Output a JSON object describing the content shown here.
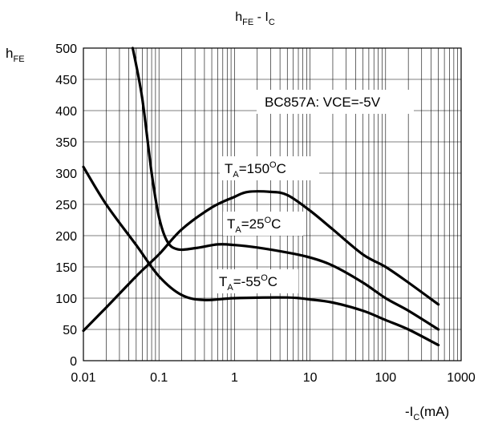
{
  "chart_data": {
    "type": "line",
    "title": {
      "main": "h",
      "main_sub": "FE",
      "sep": " - I",
      "sep_sub": "C"
    },
    "ylabel": {
      "main": "h",
      "sub": "FE"
    },
    "xlabel": {
      "pre": "-I",
      "sub": "C",
      "post": "(mA)"
    },
    "x_scale": "log",
    "xlim": [
      0.01,
      1000
    ],
    "ylim": [
      0,
      500
    ],
    "x_ticks": [
      0.01,
      0.1,
      1,
      10,
      100,
      1000
    ],
    "x_tick_labels": [
      "0.01",
      "0.1",
      "1",
      "10",
      "100",
      "1000"
    ],
    "y_ticks": [
      0,
      50,
      100,
      150,
      200,
      250,
      300,
      350,
      400,
      450,
      500
    ],
    "y_tick_labels": [
      "0",
      "50",
      "100",
      "150",
      "200",
      "250",
      "300",
      "350",
      "400",
      "450",
      "500"
    ],
    "grid": true,
    "annotation": "BC857A: VCE=-5V",
    "series": [
      {
        "name": "T_A=150°C",
        "label": {
          "pre": "T",
          "sub": "A",
          "mid": "=150",
          "sup": "O",
          "post": "C"
        },
        "points": [
          [
            0.01,
            48
          ],
          [
            0.02,
            85
          ],
          [
            0.05,
            135
          ],
          [
            0.1,
            170
          ],
          [
            0.2,
            210
          ],
          [
            0.5,
            245
          ],
          [
            1,
            262
          ],
          [
            1.5,
            270
          ],
          [
            3,
            270
          ],
          [
            5,
            265
          ],
          [
            10,
            240
          ],
          [
            20,
            210
          ],
          [
            50,
            170
          ],
          [
            100,
            150
          ],
          [
            200,
            125
          ],
          [
            500,
            90
          ]
        ]
      },
      {
        "name": "T_A=25°C",
        "label": {
          "pre": "T",
          "sub": "A",
          "mid": "=25",
          "sup": "O",
          "post": "C"
        },
        "points": [
          [
            0.045,
            500
          ],
          [
            0.06,
            420
          ],
          [
            0.08,
            300
          ],
          [
            0.1,
            230
          ],
          [
            0.13,
            190
          ],
          [
            0.18,
            178
          ],
          [
            0.3,
            180
          ],
          [
            0.6,
            186
          ],
          [
            1,
            185
          ],
          [
            2,
            181
          ],
          [
            5,
            173
          ],
          [
            10,
            165
          ],
          [
            20,
            152
          ],
          [
            50,
            125
          ],
          [
            100,
            100
          ],
          [
            200,
            80
          ],
          [
            500,
            50
          ]
        ]
      },
      {
        "name": "T_A=-55°C",
        "label": {
          "pre": "T",
          "sub": "A",
          "mid": "=-55",
          "sup": "O",
          "post": "C"
        },
        "points": [
          [
            0.01,
            310
          ],
          [
            0.02,
            250
          ],
          [
            0.05,
            185
          ],
          [
            0.1,
            135
          ],
          [
            0.2,
            105
          ],
          [
            0.4,
            97
          ],
          [
            1,
            100
          ],
          [
            5,
            101
          ],
          [
            10,
            98
          ],
          [
            20,
            93
          ],
          [
            50,
            80
          ],
          [
            100,
            65
          ],
          [
            200,
            50
          ],
          [
            500,
            25
          ]
        ]
      }
    ]
  }
}
